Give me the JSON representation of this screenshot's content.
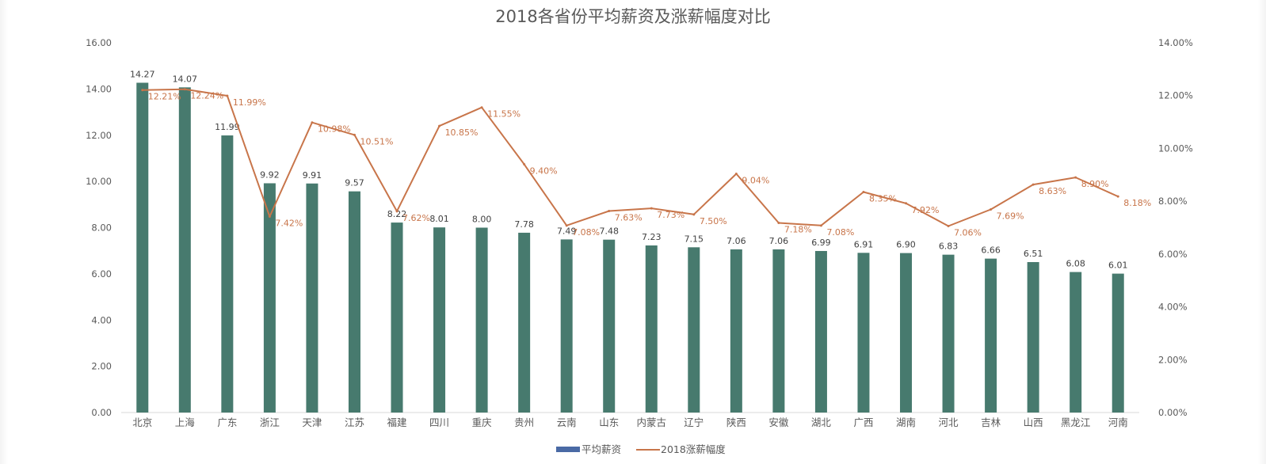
{
  "chart_data": {
    "type": "bar+line",
    "title": "2018各省份平均薪资及涨薪幅度对比",
    "categories": [
      "北京",
      "上海",
      "广东",
      "浙江",
      "天津",
      "江苏",
      "福建",
      "四川",
      "重庆",
      "贵州",
      "云南",
      "山东",
      "内蒙古",
      "辽宁",
      "陕西",
      "安徽",
      "湖北",
      "广西",
      "湖南",
      "河北",
      "吉林",
      "山西",
      "黑龙江",
      "河南"
    ],
    "series": [
      {
        "name": "平均薪资",
        "type": "bar",
        "axis": "left",
        "color": "#477a6e",
        "legend_color": "#4a6aa5",
        "values": [
          14.27,
          14.07,
          11.99,
          9.92,
          9.91,
          9.57,
          8.22,
          8.01,
          8.0,
          7.78,
          7.49,
          7.48,
          7.23,
          7.15,
          7.06,
          7.06,
          6.99,
          6.91,
          6.9,
          6.83,
          6.66,
          6.51,
          6.08,
          6.01
        ],
        "labels": [
          "14.27",
          "14.07",
          "11.99",
          "9.92",
          "9.91",
          "9.57",
          "8.22",
          "8.01",
          "8.00",
          "7.78",
          "7.49",
          "7.48",
          "7.23",
          "7.15",
          "7.06",
          "7.06",
          "6.99",
          "6.91",
          "6.90",
          "6.83",
          "6.66",
          "6.51",
          "6.08",
          "6.01"
        ]
      },
      {
        "name": "2018涨薪幅度",
        "type": "line",
        "axis": "right",
        "color": "#c8754a",
        "values": [
          12.21,
          12.24,
          11.99,
          7.42,
          10.98,
          10.51,
          7.62,
          10.85,
          11.55,
          9.4,
          7.08,
          7.63,
          7.73,
          7.5,
          9.04,
          7.18,
          7.08,
          8.35,
          7.92,
          7.06,
          7.69,
          8.63,
          8.9,
          8.18
        ],
        "labels": [
          "12.21%",
          "12.24%",
          "11.99%",
          "7.42%",
          "10.98%",
          "10.51%",
          "7.62%",
          "10.85%",
          "11.55%",
          "9.40%",
          "7.08%",
          "7.63%",
          "7.73%",
          "7.50%",
          "9.04%",
          "7.18%",
          "7.08%",
          "8.35%",
          "7.92%",
          "7.06%",
          "7.69%",
          "8.63%",
          "8.90%",
          "8.18%"
        ]
      }
    ],
    "y_left": {
      "lim": [
        0,
        16
      ],
      "ticks": [
        "0.00",
        "2.00",
        "4.00",
        "6.00",
        "8.00",
        "10.00",
        "12.00",
        "14.00",
        "16.00"
      ]
    },
    "y_right": {
      "lim": [
        0,
        14
      ],
      "ticks": [
        "0.00%",
        "2.00%",
        "4.00%",
        "6.00%",
        "8.00%",
        "10.00%",
        "12.00%",
        "14.00%"
      ]
    },
    "grid": false,
    "legend_position": "bottom"
  }
}
